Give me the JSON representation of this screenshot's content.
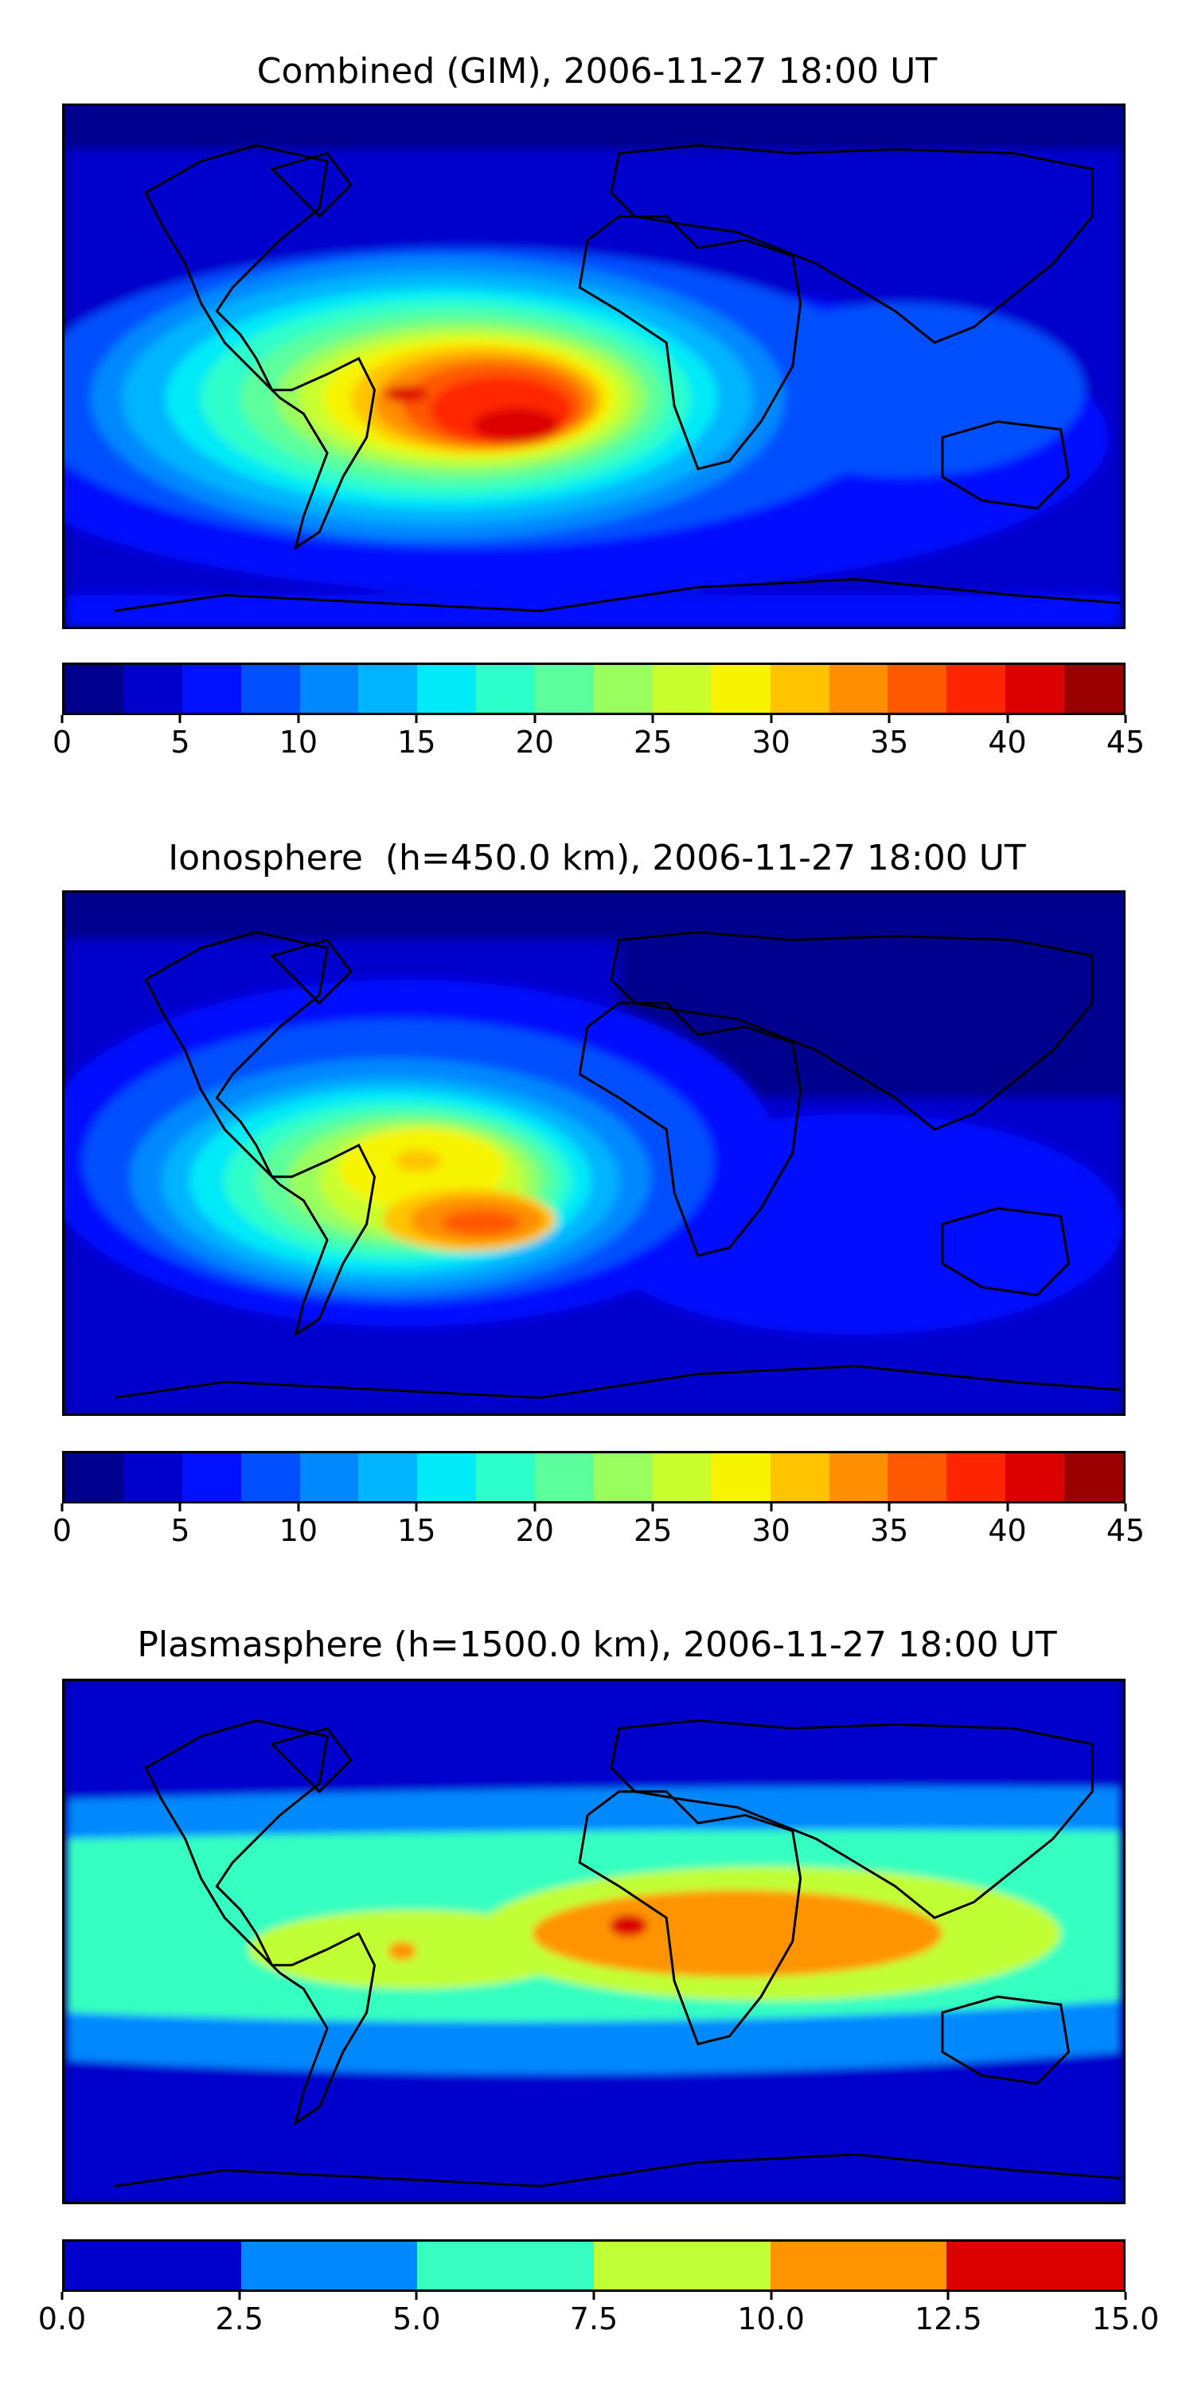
{
  "panels": [
    {
      "title": "Combined (GIM), 2006-11-27 18:00 UT",
      "colorbar": {
        "colors": [
          "#00008f",
          "#0000cd",
          "#0011ff",
          "#0050ff",
          "#0088ff",
          "#00b4ff",
          "#00eaf7",
          "#2dffca",
          "#5bff9b",
          "#99ff5e",
          "#c9ff2d",
          "#f7f400",
          "#ffc400",
          "#ff8e00",
          "#ff5900",
          "#ff2500",
          "#dc0000",
          "#9b0000"
        ],
        "ticks": [
          "0",
          "5",
          "10",
          "15",
          "20",
          "25",
          "30",
          "35",
          "40",
          "45"
        ]
      }
    },
    {
      "title": "Ionosphere  (h=450.0 km), 2006-11-27 18:00 UT",
      "colorbar": {
        "colors": [
          "#00008f",
          "#0000cd",
          "#0011ff",
          "#0050ff",
          "#0088ff",
          "#00b4ff",
          "#00eaf7",
          "#2dffca",
          "#5bff9b",
          "#99ff5e",
          "#c9ff2d",
          "#f7f400",
          "#ffc400",
          "#ff8e00",
          "#ff5900",
          "#ff2500",
          "#dc0000",
          "#9b0000"
        ],
        "ticks": [
          "0",
          "5",
          "10",
          "15",
          "20",
          "25",
          "30",
          "35",
          "40",
          "45"
        ]
      }
    },
    {
      "title": "Plasmasphere (h=1500.0 km), 2006-11-27 18:00 UT",
      "colorbar": {
        "colors": [
          "#0000cd",
          "#0088ff",
          "#36ffc1",
          "#c1ff36",
          "#ff9400",
          "#dc0000"
        ],
        "ticks": [
          "0.0",
          "2.5",
          "5.0",
          "7.5",
          "10.0",
          "12.5",
          "15.0"
        ]
      }
    }
  ]
}
